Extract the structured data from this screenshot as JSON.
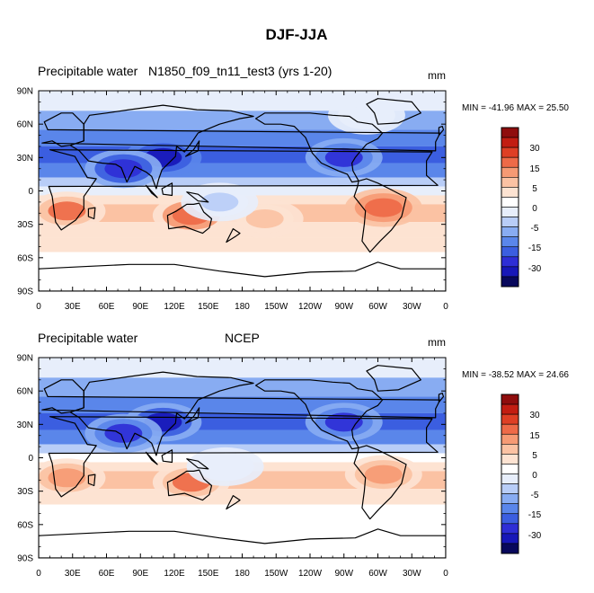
{
  "figure": {
    "title": "DJF-JJA"
  },
  "colorbar": {
    "colors": [
      "#08085c",
      "#1717b8",
      "#2e2ed6",
      "#3b5ee0",
      "#5a86ea",
      "#88acf2",
      "#b8cdf7",
      "#e7eefb",
      "#ffffff",
      "#fde3d2",
      "#fbc2a3",
      "#f69a74",
      "#ee6a48",
      "#de3f25",
      "#c21d12",
      "#8f0d0d"
    ],
    "labels": [
      "30",
      "15",
      "5",
      "0",
      "-5",
      "-15",
      "-30"
    ]
  },
  "chart_data": [
    {
      "type": "heatmap",
      "panel_id": "model",
      "title_left": "Precipitable water",
      "title_center": "N1850_f09_tn11_test3 (yrs 1-20)",
      "units": "mm",
      "stats": "MIN = -41.96 MAX =  25.50",
      "x_tick_labels": [
        "0",
        "30E",
        "60E",
        "90E",
        "120E",
        "150E",
        "180",
        "150W",
        "120W",
        "90W",
        "60W",
        "30W",
        "0"
      ],
      "y_tick_labels": [
        "90N",
        "60N",
        "30N",
        "0",
        "30S",
        "60S",
        "90S"
      ],
      "xlim": [
        0,
        360
      ],
      "ylim": [
        -90,
        90
      ],
      "contour_levels": [
        -35,
        -30,
        -25,
        -20,
        -15,
        -10,
        -5,
        0,
        5,
        10,
        15,
        20,
        25,
        30,
        35
      ],
      "min": -41.96,
      "max": 25.5,
      "bands": [
        {
          "lat": [
            72,
            90
          ],
          "value": -2
        },
        {
          "lat": [
            55,
            72
          ],
          "value": -14
        },
        {
          "lat": [
            40,
            55
          ],
          "value": -18
        },
        {
          "lat": [
            25,
            40
          ],
          "value": -24
        },
        {
          "lat": [
            12,
            25
          ],
          "value": -20
        },
        {
          "lat": [
            4,
            12
          ],
          "value": -10
        },
        {
          "lat": [
            -4,
            4
          ],
          "value": -1
        },
        {
          "lat": [
            -12,
            -4
          ],
          "value": 6
        },
        {
          "lat": [
            -28,
            -12
          ],
          "value": 12
        },
        {
          "lat": [
            -42,
            -28
          ],
          "value": 8
        },
        {
          "lat": [
            -55,
            -42
          ],
          "value": 5
        },
        {
          "lat": [
            -70,
            -55
          ],
          "value": 3
        },
        {
          "lat": [
            -90,
            -70
          ],
          "value": 1
        }
      ],
      "anomalies": [
        {
          "lon": 25,
          "lat": -18,
          "value": 20
        },
        {
          "lon": 135,
          "lat": -22,
          "value": 22
        },
        {
          "lon": 305,
          "lat": -15,
          "value": 24
        },
        {
          "lon": 200,
          "lat": -25,
          "value": 14
        },
        {
          "lon": 110,
          "lat": 30,
          "value": -35
        },
        {
          "lon": 270,
          "lat": 30,
          "value": -28
        },
        {
          "lon": 75,
          "lat": 20,
          "value": -30
        },
        {
          "lon": 160,
          "lat": -10,
          "value": -6
        },
        {
          "lon": 290,
          "lat": 68,
          "value": -4
        }
      ]
    },
    {
      "type": "heatmap",
      "panel_id": "ncep",
      "title_left": "Precipitable water",
      "title_center": "NCEP",
      "units": "mm",
      "stats": "MIN = -38.52 MAX =  24.66",
      "x_tick_labels": [
        "0",
        "30E",
        "60E",
        "90E",
        "120E",
        "150E",
        "180",
        "150W",
        "120W",
        "90W",
        "60W",
        "30W",
        "0"
      ],
      "y_tick_labels": [
        "90N",
        "60N",
        "30N",
        "0",
        "30S",
        "60S",
        "90S"
      ],
      "xlim": [
        0,
        360
      ],
      "ylim": [
        -90,
        90
      ],
      "contour_levels": [
        -35,
        -30,
        -25,
        -20,
        -15,
        -10,
        -5,
        0,
        5,
        10,
        15,
        20,
        25,
        30,
        35
      ],
      "min": -38.52,
      "max": 24.66,
      "bands": [
        {
          "lat": [
            72,
            90
          ],
          "value": -3
        },
        {
          "lat": [
            55,
            72
          ],
          "value": -13
        },
        {
          "lat": [
            40,
            55
          ],
          "value": -19
        },
        {
          "lat": [
            25,
            40
          ],
          "value": -22
        },
        {
          "lat": [
            12,
            25
          ],
          "value": -16
        },
        {
          "lat": [
            4,
            12
          ],
          "value": -6
        },
        {
          "lat": [
            -4,
            4
          ],
          "value": 1
        },
        {
          "lat": [
            -12,
            -4
          ],
          "value": 5
        },
        {
          "lat": [
            -28,
            -12
          ],
          "value": 10
        },
        {
          "lat": [
            -42,
            -28
          ],
          "value": 7
        },
        {
          "lat": [
            -55,
            -42
          ],
          "value": 4
        },
        {
          "lat": [
            -70,
            -55
          ],
          "value": 3
        },
        {
          "lat": [
            -90,
            -70
          ],
          "value": 1
        }
      ],
      "anomalies": [
        {
          "lon": 25,
          "lat": -18,
          "value": 16
        },
        {
          "lon": 135,
          "lat": -22,
          "value": 20
        },
        {
          "lon": 305,
          "lat": -15,
          "value": 15
        },
        {
          "lon": 110,
          "lat": 32,
          "value": -33
        },
        {
          "lon": 270,
          "lat": 32,
          "value": -27
        },
        {
          "lon": 75,
          "lat": 22,
          "value": -28
        },
        {
          "lon": 165,
          "lat": -8,
          "value": -4
        }
      ]
    }
  ]
}
